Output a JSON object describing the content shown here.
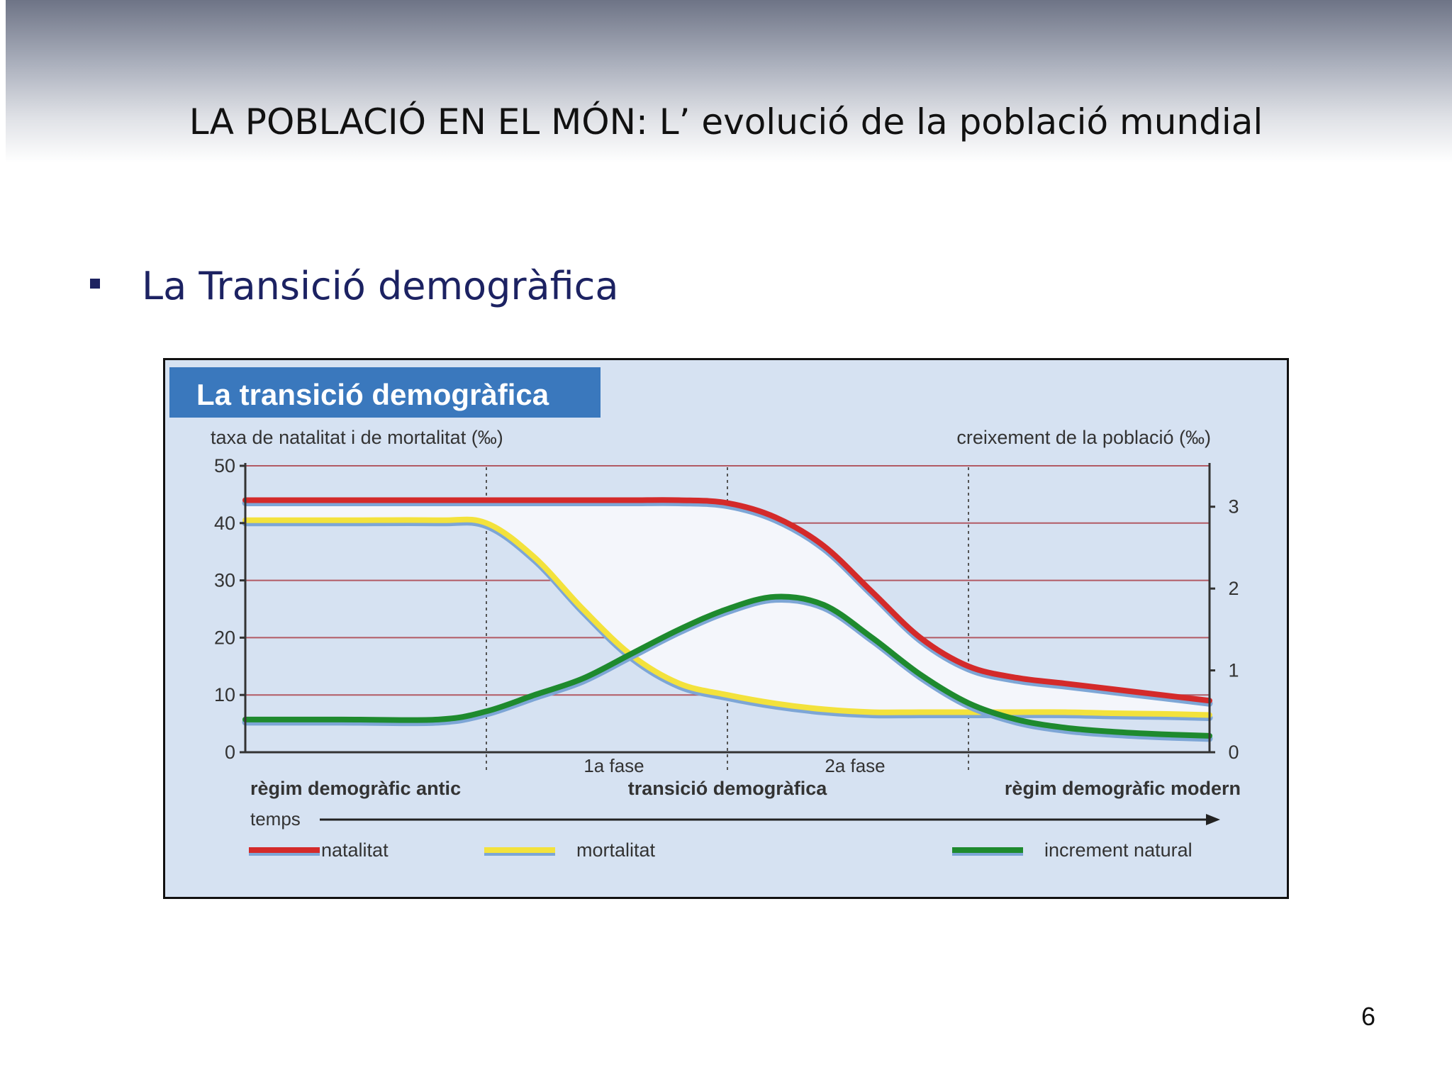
{
  "slide": {
    "title": "LA POBLACIÓ EN EL MÓN: L’ evolució de la població mundial",
    "bullet": "La Transició demogràfica",
    "page_number": "6"
  },
  "colors": {
    "natalitat": "#d42a2a",
    "mortalitat": "#f3e23c",
    "increment": "#1e8a2e",
    "bullet": "#1c2260",
    "chart_background": "#d6e2f2",
    "title_box": "#3a78bd",
    "gap_fill": "#f4f6fb"
  },
  "chart_data": {
    "type": "line",
    "title": "La transició demogràfica",
    "ylabel": "taxa de natalitat i de mortalitat (‰)",
    "y2label": "creixement de la població (‰)",
    "xlabel": "temps",
    "ylim": [
      0,
      50
    ],
    "y2lim": [
      0,
      3.5
    ],
    "yticks": [
      "0",
      "10",
      "20",
      "30",
      "40",
      "50"
    ],
    "y2ticks": [
      "0",
      "1",
      "2",
      "3"
    ],
    "grid": true,
    "x": [
      0,
      10,
      20,
      25,
      30,
      35,
      40,
      45,
      50,
      55,
      60,
      65,
      70,
      75,
      80,
      85,
      90,
      95,
      100
    ],
    "series": [
      {
        "name": "natalitat",
        "axis": "left",
        "values": [
          44,
          44,
          44,
          44,
          44,
          44,
          44,
          44,
          43.5,
          41,
          36,
          28,
          20,
          15,
          13,
          12,
          11,
          10,
          9
        ]
      },
      {
        "name": "mortalitat",
        "axis": "left",
        "values": [
          40.5,
          40.5,
          40.5,
          40,
          34,
          25,
          17,
          12,
          10,
          8.5,
          7.5,
          7,
          7,
          7,
          7,
          7,
          6.8,
          6.7,
          6.5
        ]
      },
      {
        "name": "increment natural",
        "axis": "right",
        "values": [
          0.4,
          0.4,
          0.4,
          0.5,
          0.7,
          0.9,
          1.2,
          1.5,
          1.75,
          1.9,
          1.8,
          1.4,
          0.95,
          0.6,
          0.4,
          0.3,
          0.25,
          0.22,
          0.2
        ]
      }
    ],
    "phases": [
      {
        "label": "règim demogràfic antic",
        "start": 0,
        "end": 25
      },
      {
        "label": "transició demogràfica",
        "start": 25,
        "end": 75,
        "subphases": [
          "1a fase",
          "2a fase"
        ],
        "split": 50
      },
      {
        "label": "règim demogràfic modern",
        "start": 75,
        "end": 100
      }
    ],
    "legend": {
      "placement": "bottom",
      "items": [
        "natalitat",
        "mortalitat",
        "increment natural"
      ]
    }
  }
}
